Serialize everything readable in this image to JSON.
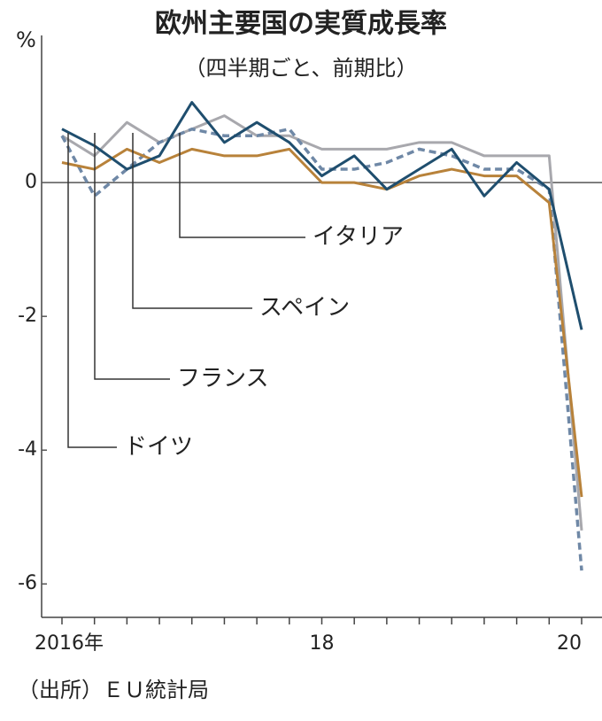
{
  "chart_data": {
    "type": "line",
    "title": "欧州主要国の実質成長率",
    "subtitle": "（四半期ごと、前期比）",
    "unit": "%",
    "source": "（出所）ＥＵ統計局",
    "categories": [
      "2016年",
      null,
      null,
      null,
      null,
      null,
      null,
      null,
      "18",
      null,
      null,
      null,
      null,
      null,
      null,
      null,
      "20"
    ],
    "ylim": [
      -6.5,
      2.2
    ],
    "yticks": [
      -6,
      -4,
      -2,
      0
    ],
    "series": [
      {
        "name": "ドイツ",
        "color": "#1f4e6e",
        "values": [
          0.8,
          0.55,
          0.2,
          0.4,
          1.2,
          0.6,
          0.9,
          0.6,
          0.1,
          0.4,
          -0.1,
          0.2,
          0.5,
          -0.2,
          0.3,
          -0.1,
          -2.2
        ]
      },
      {
        "name": "フランス",
        "color": "#6f88a6",
        "dashed": true,
        "values": [
          0.7,
          -0.2,
          0.2,
          0.6,
          0.8,
          0.7,
          0.7,
          0.8,
          0.2,
          0.2,
          0.3,
          0.5,
          0.4,
          0.2,
          0.2,
          -0.1,
          -5.8
        ]
      },
      {
        "name": "スペイン",
        "color": "#a8a8ad",
        "values": [
          0.7,
          0.4,
          0.9,
          0.6,
          0.8,
          1.0,
          0.7,
          0.7,
          0.5,
          0.5,
          0.5,
          0.6,
          0.6,
          0.4,
          0.4,
          0.4,
          -5.2
        ]
      },
      {
        "name": "イタリア",
        "color": "#b8823a",
        "values": [
          0.3,
          0.2,
          0.5,
          0.3,
          0.5,
          0.4,
          0.4,
          0.5,
          0.0,
          0.0,
          -0.1,
          0.1,
          0.2,
          0.1,
          0.1,
          -0.3,
          -4.7
        ]
      }
    ]
  }
}
